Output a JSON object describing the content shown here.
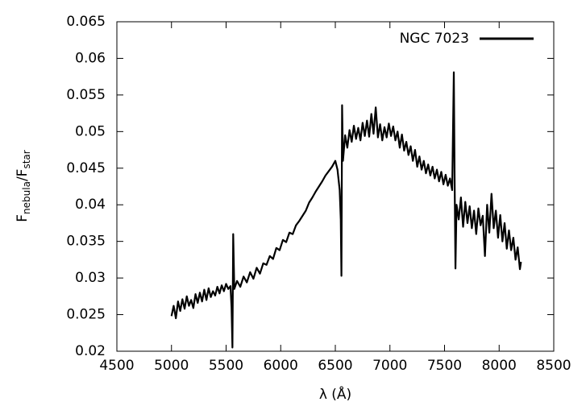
{
  "chart_data": {
    "type": "line",
    "xlabel": "λ (Å)",
    "ylabel": {
      "main": "F",
      "main_sub": "nebula",
      "slash": "/F",
      "slash_sub": "star"
    },
    "xlim": [
      4500,
      8500
    ],
    "xticks": [
      4500,
      5000,
      5500,
      6000,
      6500,
      7000,
      7500,
      8000,
      8500
    ],
    "ylim": [
      0.02,
      0.065
    ],
    "yticks": [
      0.02,
      0.025,
      0.03,
      0.035,
      0.04,
      0.045,
      0.05,
      0.055,
      0.06,
      0.065
    ],
    "grid": false,
    "legend": "top-right",
    "x": [
      5000,
      5020,
      5040,
      5060,
      5080,
      5100,
      5120,
      5140,
      5160,
      5180,
      5200,
      5220,
      5240,
      5260,
      5280,
      5300,
      5320,
      5340,
      5360,
      5380,
      5400,
      5420,
      5440,
      5460,
      5480,
      5500,
      5520,
      5540,
      5550,
      5558,
      5565,
      5575,
      5600,
      5630,
      5660,
      5690,
      5720,
      5750,
      5780,
      5810,
      5840,
      5870,
      5900,
      5930,
      5960,
      5990,
      6020,
      6050,
      6080,
      6110,
      6140,
      6170,
      6200,
      6230,
      6260,
      6290,
      6320,
      6350,
      6380,
      6410,
      6440,
      6470,
      6500,
      6520,
      6540,
      6550,
      6556,
      6562,
      6570,
      6590,
      6610,
      6630,
      6650,
      6670,
      6690,
      6710,
      6730,
      6750,
      6770,
      6790,
      6810,
      6830,
      6850,
      6870,
      6890,
      6910,
      6930,
      6950,
      6970,
      6990,
      7010,
      7030,
      7050,
      7070,
      7090,
      7110,
      7130,
      7150,
      7170,
      7190,
      7210,
      7230,
      7250,
      7270,
      7290,
      7310,
      7330,
      7350,
      7370,
      7390,
      7410,
      7430,
      7450,
      7470,
      7490,
      7510,
      7530,
      7550,
      7570,
      7585,
      7592,
      7600,
      7610,
      7630,
      7650,
      7670,
      7690,
      7710,
      7730,
      7750,
      7770,
      7790,
      7810,
      7830,
      7850,
      7870,
      7890,
      7910,
      7930,
      7950,
      7970,
      7990,
      8010,
      8030,
      8050,
      8070,
      8090,
      8110,
      8130,
      8150,
      8170,
      8190,
      8200
    ],
    "series": [
      {
        "name": "NGC 7023",
        "color": "#000000",
        "values": [
          0.0248,
          0.0262,
          0.0245,
          0.0268,
          0.0255,
          0.0271,
          0.0258,
          0.0275,
          0.0262,
          0.027,
          0.0259,
          0.0278,
          0.0266,
          0.028,
          0.0268,
          0.0284,
          0.027,
          0.0286,
          0.0274,
          0.0282,
          0.0276,
          0.0288,
          0.0279,
          0.029,
          0.0282,
          0.0292,
          0.0285,
          0.0289,
          0.026,
          0.0205,
          0.036,
          0.0285,
          0.0296,
          0.0288,
          0.0302,
          0.0294,
          0.0308,
          0.0299,
          0.0314,
          0.0306,
          0.032,
          0.0318,
          0.033,
          0.0326,
          0.0341,
          0.0338,
          0.0352,
          0.0349,
          0.0362,
          0.036,
          0.0372,
          0.0378,
          0.0385,
          0.0392,
          0.0403,
          0.041,
          0.0418,
          0.0425,
          0.0432,
          0.044,
          0.0446,
          0.0452,
          0.046,
          0.0448,
          0.042,
          0.038,
          0.0303,
          0.0536,
          0.046,
          0.0495,
          0.0478,
          0.0502,
          0.0486,
          0.0508,
          0.049,
          0.0505,
          0.0488,
          0.0512,
          0.0494,
          0.0515,
          0.0493,
          0.0524,
          0.0497,
          0.0533,
          0.0492,
          0.051,
          0.0488,
          0.0506,
          0.0492,
          0.0511,
          0.0494,
          0.0507,
          0.0488,
          0.05,
          0.0478,
          0.0496,
          0.0474,
          0.0486,
          0.0468,
          0.048,
          0.046,
          0.0475,
          0.0452,
          0.0466,
          0.0448,
          0.046,
          0.0443,
          0.0455,
          0.044,
          0.0452,
          0.0436,
          0.0448,
          0.0432,
          0.0445,
          0.0428,
          0.0441,
          0.0426,
          0.0436,
          0.042,
          0.0581,
          0.044,
          0.0313,
          0.04,
          0.038,
          0.041,
          0.037,
          0.0404,
          0.0375,
          0.0398,
          0.0368,
          0.0392,
          0.036,
          0.0395,
          0.0372,
          0.0385,
          0.033,
          0.04,
          0.0362,
          0.0415,
          0.0368,
          0.0392,
          0.0355,
          0.0386,
          0.035,
          0.0375,
          0.034,
          0.0365,
          0.0338,
          0.0355,
          0.0325,
          0.0342,
          0.0312,
          0.0322
        ]
      }
    ]
  }
}
